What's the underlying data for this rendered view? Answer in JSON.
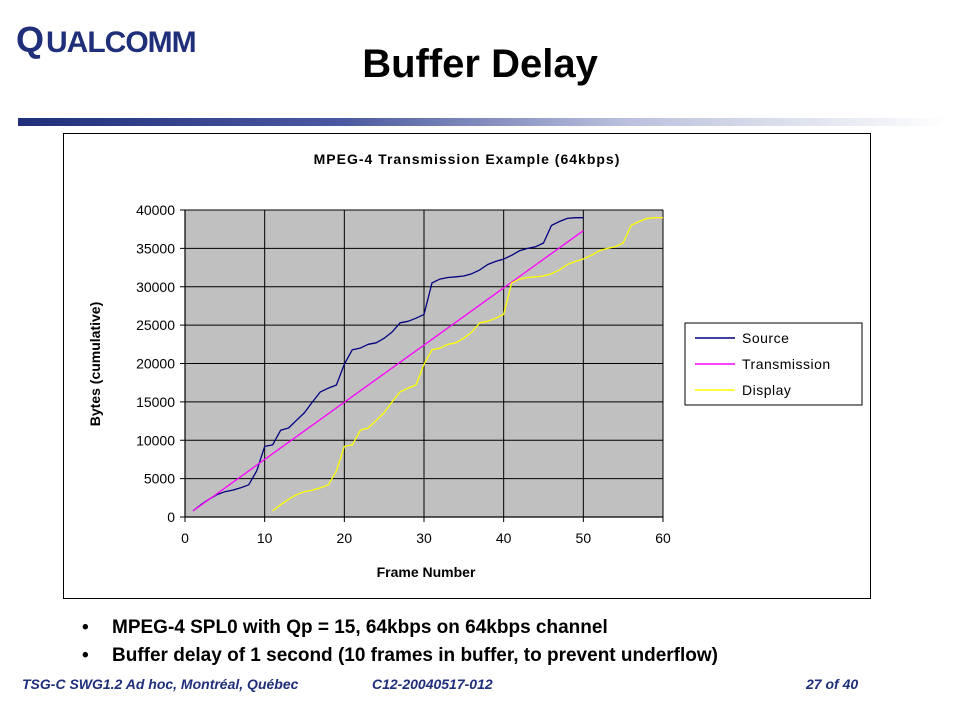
{
  "header": {
    "logo_text": "QUALCOMM",
    "title": "Buffer Delay"
  },
  "bullets": [
    {
      "text": "MPEG-4 SPL0 with Qp = 15, 64kbps on 64kbps channel"
    },
    {
      "text": "Buffer delay of 1 second (10 frames in buffer, to prevent underflow)"
    }
  ],
  "footer": {
    "meeting": "TSG-C SWG1.2 Ad hoc, Montréal, Québec",
    "doc_id": "C12-20040517-012",
    "page": "27 of 40"
  },
  "colors": {
    "accent": "#1f2f7a",
    "plot_background": "#c0c0c0",
    "source": "#000080",
    "transmission": "#ff00ff",
    "display": "#ffff00"
  },
  "chart_data": {
    "type": "line",
    "title": "MPEG-4 Transmission Example (64kbps)",
    "xlabel": "Frame Number",
    "ylabel": "Bytes (cumulative)",
    "xlim": [
      0,
      60
    ],
    "ylim": [
      0,
      40000
    ],
    "x_ticks": [
      "0",
      "10",
      "20",
      "30",
      "40",
      "50",
      "60"
    ],
    "y_ticks": [
      "0",
      "5000",
      "10000",
      "15000",
      "20000",
      "25000",
      "30000",
      "35000",
      "40000"
    ],
    "grid": true,
    "legend_position": "right",
    "series": [
      {
        "name": "Source",
        "color": "#000080",
        "x": [
          1,
          2,
          3,
          4,
          5,
          6,
          7,
          8,
          9,
          10,
          11,
          12,
          13,
          14,
          15,
          16,
          17,
          18,
          19,
          20,
          21,
          22,
          23,
          24,
          25,
          26,
          27,
          28,
          29,
          30,
          31,
          32,
          33,
          34,
          35,
          36,
          37,
          38,
          39,
          40,
          41,
          42,
          43,
          44,
          45,
          46,
          47,
          48,
          49,
          50
        ],
        "y": [
          800,
          1600,
          2300,
          2900,
          3300,
          3500,
          3800,
          4200,
          6000,
          9200,
          9400,
          11300,
          11600,
          12600,
          13600,
          15000,
          16300,
          16800,
          17200,
          19900,
          21800,
          22000,
          22500,
          22700,
          23300,
          24100,
          25300,
          25500,
          25900,
          26400,
          30500,
          31000,
          31200,
          31300,
          31400,
          31700,
          32200,
          32900,
          33300,
          33600,
          34100,
          34700,
          35000,
          35200,
          35700,
          38000,
          38500,
          38900,
          39000,
          39000
        ]
      },
      {
        "name": "Transmission",
        "color": "#ff00ff",
        "x": [
          1,
          50
        ],
        "y": [
          800,
          37300
        ]
      },
      {
        "name": "Display",
        "color": "#ffff00",
        "x": [
          11,
          12,
          13,
          14,
          15,
          16,
          17,
          18,
          19,
          20,
          21,
          22,
          23,
          24,
          25,
          26,
          27,
          28,
          29,
          30,
          31,
          32,
          33,
          34,
          35,
          36,
          37,
          38,
          39,
          40,
          41,
          42,
          43,
          44,
          45,
          46,
          47,
          48,
          49,
          50,
          51,
          52,
          53,
          54,
          55,
          56,
          57,
          58,
          59,
          60
        ],
        "y": [
          800,
          1600,
          2300,
          2900,
          3300,
          3500,
          3800,
          4200,
          6000,
          9200,
          9400,
          11300,
          11600,
          12600,
          13600,
          15000,
          16300,
          16800,
          17200,
          19900,
          21800,
          22000,
          22500,
          22700,
          23300,
          24100,
          25300,
          25500,
          25900,
          26400,
          30500,
          31000,
          31200,
          31300,
          31400,
          31700,
          32200,
          32900,
          33300,
          33600,
          34100,
          34700,
          35000,
          35200,
          35700,
          38000,
          38500,
          38900,
          39000,
          39000
        ]
      }
    ]
  }
}
